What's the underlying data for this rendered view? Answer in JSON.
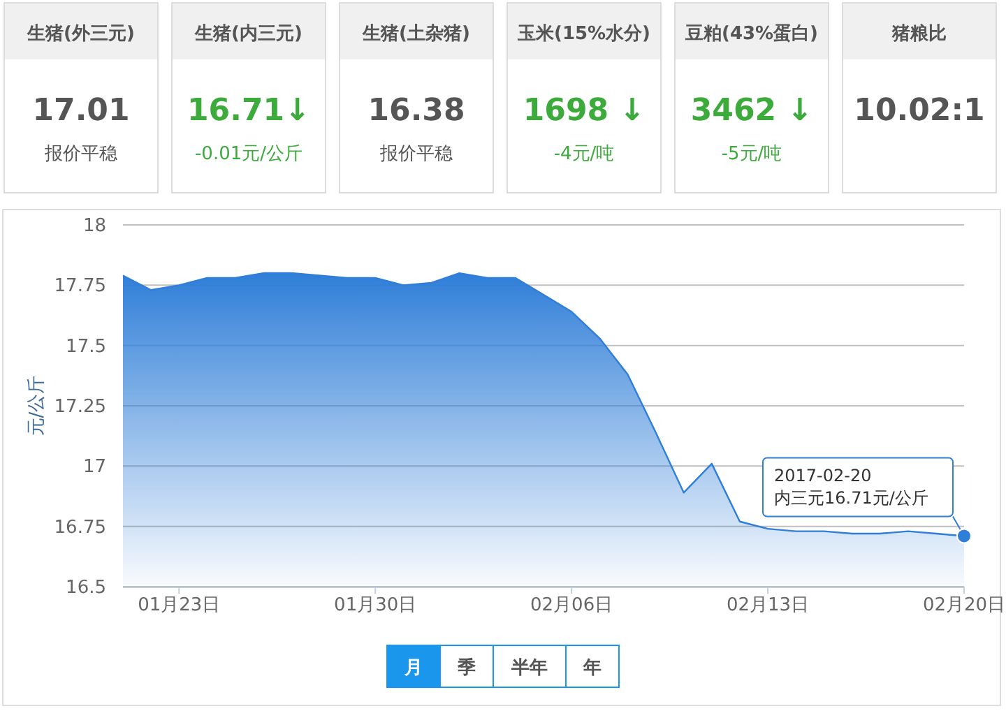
{
  "chart_data": [
    {
      "type": "other",
      "annotations": [
        "生猪(外三元)",
        "17.01",
        "报价平稳",
        "生猪(内三元)",
        "16.71↓",
        "-0.01元/公斤",
        "生猪(土杂猪)",
        "16.38",
        "报价平稳",
        "玉米(15%水分)",
        "1698 ↓",
        "-4元/吨",
        "豆粕(43%蛋白)",
        "3462 ↓",
        "-5元/吨",
        "猪粮比",
        "10.02:1"
      ],
      "colors": [
        "#555555",
        "#3cab3c",
        "#555555",
        "#3cab3c",
        "#3cab3c",
        "#555555"
      ]
    },
    {
      "type": "area",
      "ylabel": "元/公斤",
      "x": [
        "2017-01-21",
        "2017-01-22",
        "2017-01-23",
        "2017-01-24",
        "2017-01-25",
        "2017-01-26",
        "2017-01-27",
        "2017-01-28",
        "2017-01-29",
        "2017-01-30",
        "2017-01-31",
        "2017-02-01",
        "2017-02-02",
        "2017-02-03",
        "2017-02-04",
        "2017-02-05",
        "2017-02-06",
        "2017-02-07",
        "2017-02-08",
        "2017-02-09",
        "2017-02-10",
        "2017-02-11",
        "2017-02-12",
        "2017-02-13",
        "2017-02-14",
        "2017-02-15",
        "2017-02-16",
        "2017-02-17",
        "2017-02-18",
        "2017-02-19",
        "2017-02-20"
      ],
      "series": [
        {
          "color": "#2f7ed8",
          "values": [
            17.79,
            17.73,
            17.75,
            17.78,
            17.78,
            17.8,
            17.8,
            17.79,
            17.78,
            17.78,
            17.75,
            17.76,
            17.8,
            17.78,
            17.78,
            17.71,
            17.64,
            17.53,
            17.38,
            17.14,
            16.89,
            17.01,
            16.77,
            16.74,
            16.73,
            16.73,
            16.72,
            16.72,
            16.73,
            16.72,
            16.71
          ]
        }
      ],
      "xlim": [
        "2017-01-21",
        "2017-02-20"
      ],
      "xticks": [
        {
          "value": "2017-01-23",
          "label": "01月23日"
        },
        {
          "value": "2017-01-30",
          "label": "01月30日"
        },
        {
          "value": "2017-02-06",
          "label": "02月06日"
        },
        {
          "value": "2017-02-13",
          "label": "02月13日"
        },
        {
          "value": "2017-02-20",
          "label": "02月20日"
        }
      ],
      "ylim": [
        16.5,
        18
      ],
      "yticks": [
        16.5,
        16.75,
        17,
        17.25,
        17.5,
        17.75,
        18
      ],
      "grid": "y",
      "marker": "none",
      "annotations": [
        "2017-02-20",
        {
          "text": "内三元16.71元/公斤",
          "x": "2017-02-20",
          "y": 16.71
        },
        "月",
        "季",
        "半年",
        "年"
      ]
    }
  ]
}
